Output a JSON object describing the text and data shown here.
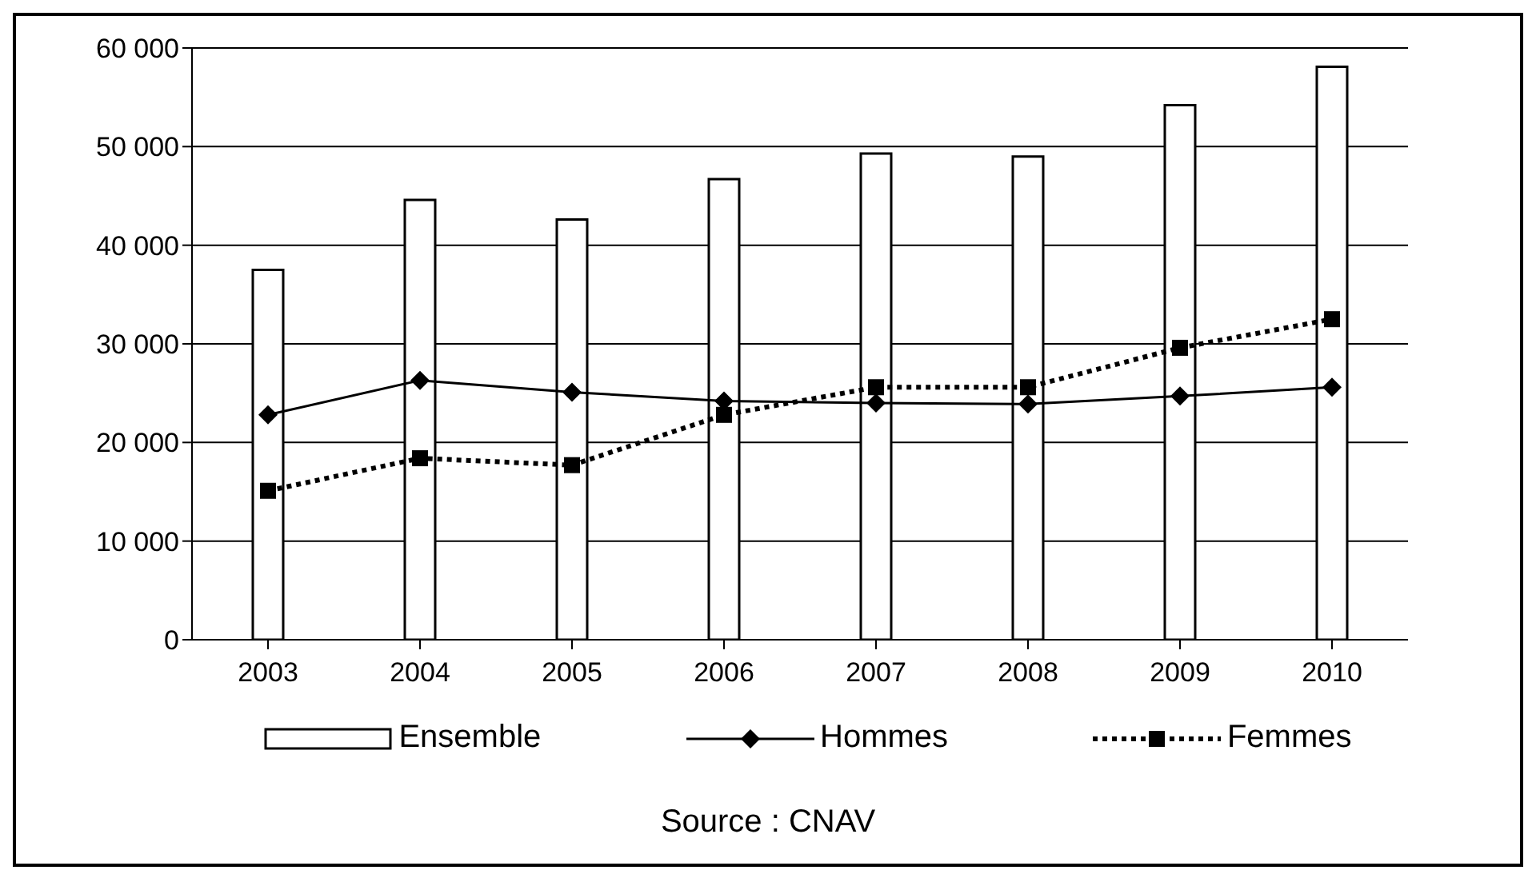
{
  "chart_data": {
    "type": "bar",
    "categories": [
      "2003",
      "2004",
      "2005",
      "2006",
      "2007",
      "2008",
      "2009",
      "2010"
    ],
    "series": [
      {
        "name": "Ensemble",
        "color": "#ffffff",
        "values": [
          37500,
          44600,
          42600,
          46700,
          49300,
          49000,
          54200,
          58100
        ]
      },
      {
        "name": "Hommes",
        "type": "line",
        "color": "#000000",
        "marker": "diamond",
        "line_style": "solid",
        "values": [
          22800,
          26300,
          25100,
          24200,
          24000,
          23900,
          24700,
          25600
        ]
      },
      {
        "name": "Femmes",
        "type": "line",
        "color": "#000000",
        "marker": "square",
        "line_style": "dotted",
        "values": [
          15100,
          18400,
          17700,
          22800,
          25600,
          25600,
          29600,
          32500
        ]
      }
    ],
    "ylim": [
      0,
      60000
    ],
    "yticks": [
      {
        "value": 0,
        "label": "0"
      },
      {
        "value": 10000,
        "label": "10 000"
      },
      {
        "value": 20000,
        "label": "20 000"
      },
      {
        "value": 30000,
        "label": "30 000"
      },
      {
        "value": 40000,
        "label": "40 000"
      },
      {
        "value": 50000,
        "label": "50 000"
      },
      {
        "value": 60000,
        "label": "60 000"
      }
    ],
    "grid": "y",
    "legend": "bottom",
    "annotations": [
      "Source : CNAV"
    ]
  }
}
